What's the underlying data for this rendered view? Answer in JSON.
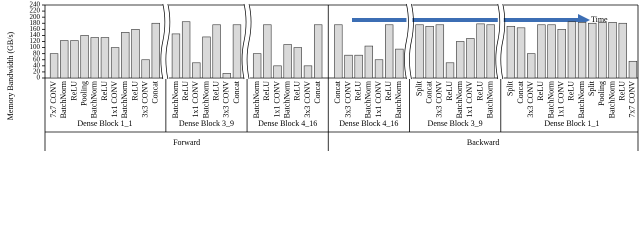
{
  "chart_data": {
    "type": "bar",
    "y_label": "Memory Bandwidth (GB/s)",
    "annotation": "Time",
    "color": "#d9d9d9",
    "ylim": [
      0,
      240
    ],
    "yticks": [
      0,
      20,
      40,
      60,
      80,
      100,
      120,
      140,
      160,
      180,
      200,
      220,
      240
    ],
    "grid": false,
    "phases": [
      {
        "name": "Forward",
        "groups": [
          {
            "name": "Dense Block 1_1",
            "categories": [
              "7x7 CONV",
              "BatchNorm",
              "ReLU",
              "Pooling",
              "BatchNorm",
              "ReLU",
              "1x1 CONV",
              "BatchNorm",
              "ReLU",
              "3x3 CONV",
              "Concat"
            ],
            "values": [
              80,
              123,
              123,
              140,
              133,
              133,
              100,
              150,
              160,
              60,
              180
            ]
          },
          {
            "name": "Dense Block 3_9",
            "categories": [
              "BatchNorm",
              "ReLU",
              "1x1 CONV",
              "BatchNorm",
              "ReLU",
              "3x3 CONV",
              "Concat"
            ],
            "values": [
              145,
              185,
              50,
              135,
              175,
              15,
              175
            ]
          },
          {
            "name": "Dense Block 4_16",
            "categories": [
              "BatchNorm",
              "ReLU",
              "1x1 CONV",
              "BatchNorm",
              "ReLU",
              "3x3 CONV",
              "Concat"
            ],
            "values": [
              80,
              175,
              40,
              110,
              100,
              40,
              175
            ]
          }
        ]
      },
      {
        "name": "Backward",
        "groups": [
          {
            "name": "Dense Block 4_16",
            "categories": [
              "Concat",
              "3x3 CONV",
              "ReLU",
              "BatchNorm",
              "1x1 CONV",
              "ReLU",
              "BatchNorm"
            ],
            "values": [
              175,
              75,
              75,
              105,
              60,
              175,
              95
            ]
          },
          {
            "name": "Dense Block 3_9",
            "categories": [
              "Split",
              "Concat",
              "3x3 CONV",
              "ReLU",
              "BatchNorm",
              "1x1 CONV",
              "ReLU",
              "BatchNorm"
            ],
            "values": [
              175,
              170,
              175,
              50,
              120,
              130,
              178,
              175
            ]
          },
          {
            "name": "Dense Block 1_1",
            "categories": [
              "Split",
              "Concat",
              "3x3 CONV",
              "ReLU",
              "BatchNorm",
              "1x1 CONV",
              "ReLU",
              "BatchNorm",
              "Split",
              "Pooling",
              "BatchNorm",
              "ReLU",
              "7x7 CONV"
            ],
            "values": [
              170,
              165,
              80,
              175,
              175,
              160,
              185,
              183,
              180,
              183,
              183,
              180,
              55
            ]
          }
        ]
      }
    ]
  }
}
